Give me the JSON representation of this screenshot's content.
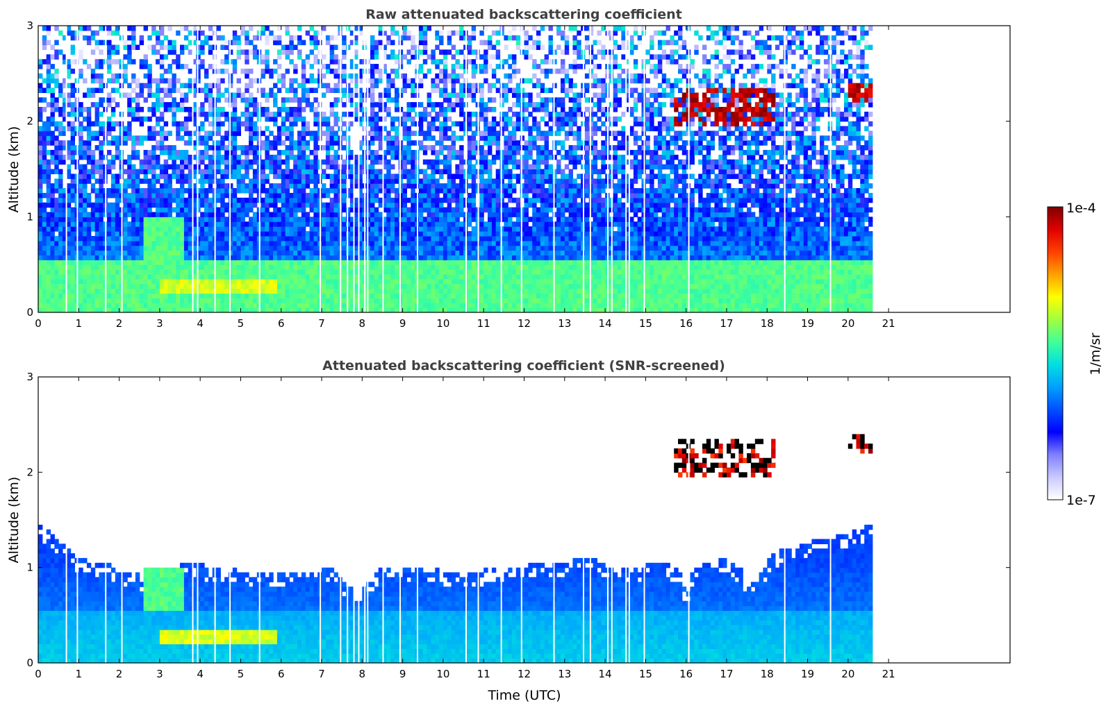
{
  "colors": {
    "title": "#404040",
    "axis": "#000000",
    "colormap": [
      "#ffffff",
      "#c9c9ff",
      "#8080ff",
      "#0000ff",
      "#0050ff",
      "#00a0ff",
      "#00e0e0",
      "#40ff9a",
      "#a0ff40",
      "#ffff00",
      "#ffa000",
      "#ff4000",
      "#e00000",
      "#800000"
    ],
    "clipped_low": "#000000"
  },
  "colorbar": {
    "label": "1/m/sr",
    "max_label": "1e-4",
    "min_label": "1e-7",
    "scale": "log",
    "range": [
      1e-07,
      0.0001
    ]
  },
  "chart_data": [
    {
      "type": "heatmap",
      "title": "Raw attenuated backscattering coefficient",
      "xlabel": "",
      "ylabel": "Altitude (km)",
      "xlim": [
        0,
        24
      ],
      "ylim": [
        0,
        3
      ],
      "x_ticks": [
        0,
        1,
        2,
        3,
        4,
        5,
        6,
        7,
        8,
        9,
        10,
        11,
        12,
        13,
        14,
        15,
        16,
        17,
        18,
        19,
        20,
        21
      ],
      "y_ticks": [
        0,
        1,
        2,
        3
      ],
      "data_extent_hours": [
        0,
        20.6
      ],
      "data_gaps_hours": [
        0.68,
        0.95,
        1.65,
        2.05,
        3.8,
        3.92,
        4.35,
        4.72,
        5.45,
        6.95,
        7.45,
        7.62,
        7.78,
        7.9,
        8.05,
        8.12,
        8.5,
        8.92,
        9.35,
        10.55,
        10.85,
        11.42,
        11.92,
        12.72,
        13.45,
        13.62,
        14.05,
        14.15,
        14.5,
        14.58,
        14.95,
        16.05,
        18.42,
        19.55
      ],
      "features": [
        {
          "name": "boundary layer",
          "x_range": [
            0,
            20.6
          ],
          "y_range": [
            0,
            0.55
          ],
          "level": "medium"
        },
        {
          "name": "aerosol layer",
          "x_range": [
            3.0,
            5.9
          ],
          "y_range": [
            0.2,
            0.35
          ],
          "level": "high"
        },
        {
          "name": "aerosol plume",
          "x_range": [
            2.6,
            3.6
          ],
          "y_range": [
            0.55,
            1.0
          ],
          "level": "medium"
        },
        {
          "name": "cloud",
          "x_range": [
            15.7,
            18.2
          ],
          "y_range": [
            1.95,
            2.35
          ],
          "level": "max"
        },
        {
          "name": "cloud",
          "x_range": [
            20.0,
            20.6
          ],
          "y_range": [
            2.2,
            2.4
          ],
          "level": "max"
        }
      ]
    },
    {
      "type": "heatmap",
      "title": "Attenuated backscattering coefficient (SNR-screened)",
      "xlabel": "Time (UTC)",
      "ylabel": "Altitude (km)",
      "xlim": [
        0,
        24
      ],
      "ylim": [
        0,
        3
      ],
      "x_ticks": [
        0,
        1,
        2,
        3,
        4,
        5,
        6,
        7,
        8,
        9,
        10,
        11,
        12,
        13,
        14,
        15,
        16,
        17,
        18,
        19,
        20,
        21
      ],
      "y_ticks": [
        0,
        1,
        2,
        3
      ],
      "data_extent_hours": [
        0,
        20.6
      ],
      "screened_top_km": [
        [
          0,
          1.45
        ],
        [
          0.5,
          1.3
        ],
        [
          1.0,
          1.1
        ],
        [
          1.6,
          1.05
        ],
        [
          2.2,
          0.95
        ],
        [
          2.8,
          0.9
        ],
        [
          3.6,
          1.05
        ],
        [
          4.5,
          1.0
        ],
        [
          5.5,
          0.95
        ],
        [
          6.5,
          0.95
        ],
        [
          7.3,
          1.0
        ],
        [
          7.6,
          0.82
        ],
        [
          8.1,
          0.82
        ],
        [
          8.4,
          1.0
        ],
        [
          9.5,
          1.0
        ],
        [
          10.5,
          0.95
        ],
        [
          11.5,
          1.0
        ],
        [
          12.5,
          1.05
        ],
        [
          13.5,
          1.1
        ],
        [
          14.5,
          1.0
        ],
        [
          15.5,
          1.05
        ],
        [
          15.9,
          0.95
        ],
        [
          16.0,
          0.7
        ],
        [
          16.2,
          1.0
        ],
        [
          16.8,
          1.1
        ],
        [
          17.4,
          1.0
        ],
        [
          17.5,
          0.8
        ],
        [
          17.8,
          0.95
        ],
        [
          18.2,
          1.15
        ],
        [
          18.6,
          1.25
        ],
        [
          19.5,
          1.3
        ],
        [
          20.6,
          1.45
        ]
      ],
      "features": [
        {
          "name": "aerosol layer",
          "x_range": [
            3.0,
            5.9
          ],
          "y_range": [
            0.2,
            0.35
          ],
          "level": "high"
        },
        {
          "name": "aerosol plume",
          "x_range": [
            2.6,
            3.6
          ],
          "y_range": [
            0.55,
            1.0
          ],
          "level": "medium"
        },
        {
          "name": "cloud",
          "x_range": [
            15.7,
            18.2
          ],
          "y_range": [
            1.95,
            2.35
          ],
          "level": "clipped"
        },
        {
          "name": "cloud",
          "x_range": [
            20.0,
            20.6
          ],
          "y_range": [
            2.2,
            2.4
          ],
          "level": "clipped"
        }
      ]
    }
  ]
}
